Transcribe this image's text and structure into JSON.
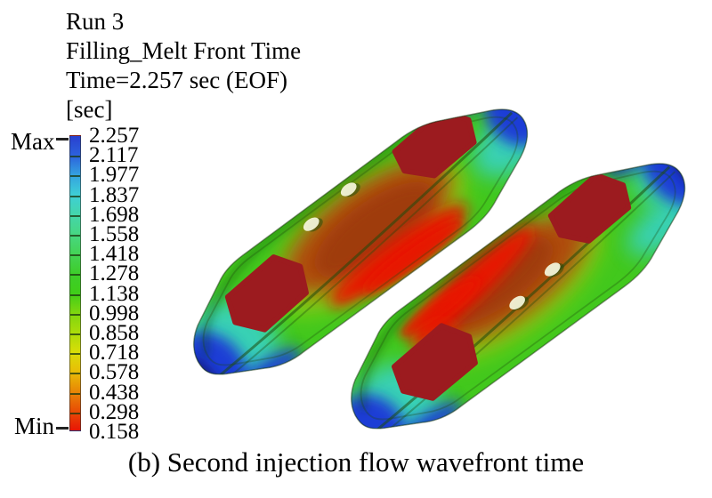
{
  "header": {
    "run": "Run 3",
    "title": "Filling_Melt Front Time",
    "time": "Time=2.257 sec (EOF)",
    "unit": "[sec]"
  },
  "colorbar": {
    "max_label": "Max",
    "min_label": "Min",
    "tick_values": [
      "2.257",
      "2.117",
      "1.977",
      "1.837",
      "1.698",
      "1.558",
      "1.418",
      "1.278",
      "1.138",
      "0.998",
      "0.858",
      "0.718",
      "0.578",
      "0.438",
      "0.298",
      "0.158"
    ],
    "colormap": [
      "#2940cf",
      "#2c62dd",
      "#34a3e0",
      "#3ecfd6",
      "#44d6ab",
      "#47d783",
      "#44d356",
      "#3ecd2b",
      "#3fce19",
      "#7ed60f",
      "#aadc0a",
      "#d8dd08",
      "#e8be07",
      "#e88706",
      "#e84e05",
      "#e81505"
    ]
  },
  "caption": "(b) Second injection flow wavefront time",
  "scene": {
    "parts": [
      "left-sole",
      "right-sole"
    ],
    "palette": {
      "green": "#42c81d",
      "cyan": "#38d2c6",
      "blue": "#1e3ed6",
      "navy": "#131f80",
      "yellow": "#c9d90c",
      "brown": "#b24407",
      "brown2": "#9e3a0e",
      "red": "#e81405",
      "maroon": "#9c1b1f",
      "bump": "#f2f3d8",
      "seam": "#1d4a0c",
      "edge": "#16300a"
    }
  }
}
